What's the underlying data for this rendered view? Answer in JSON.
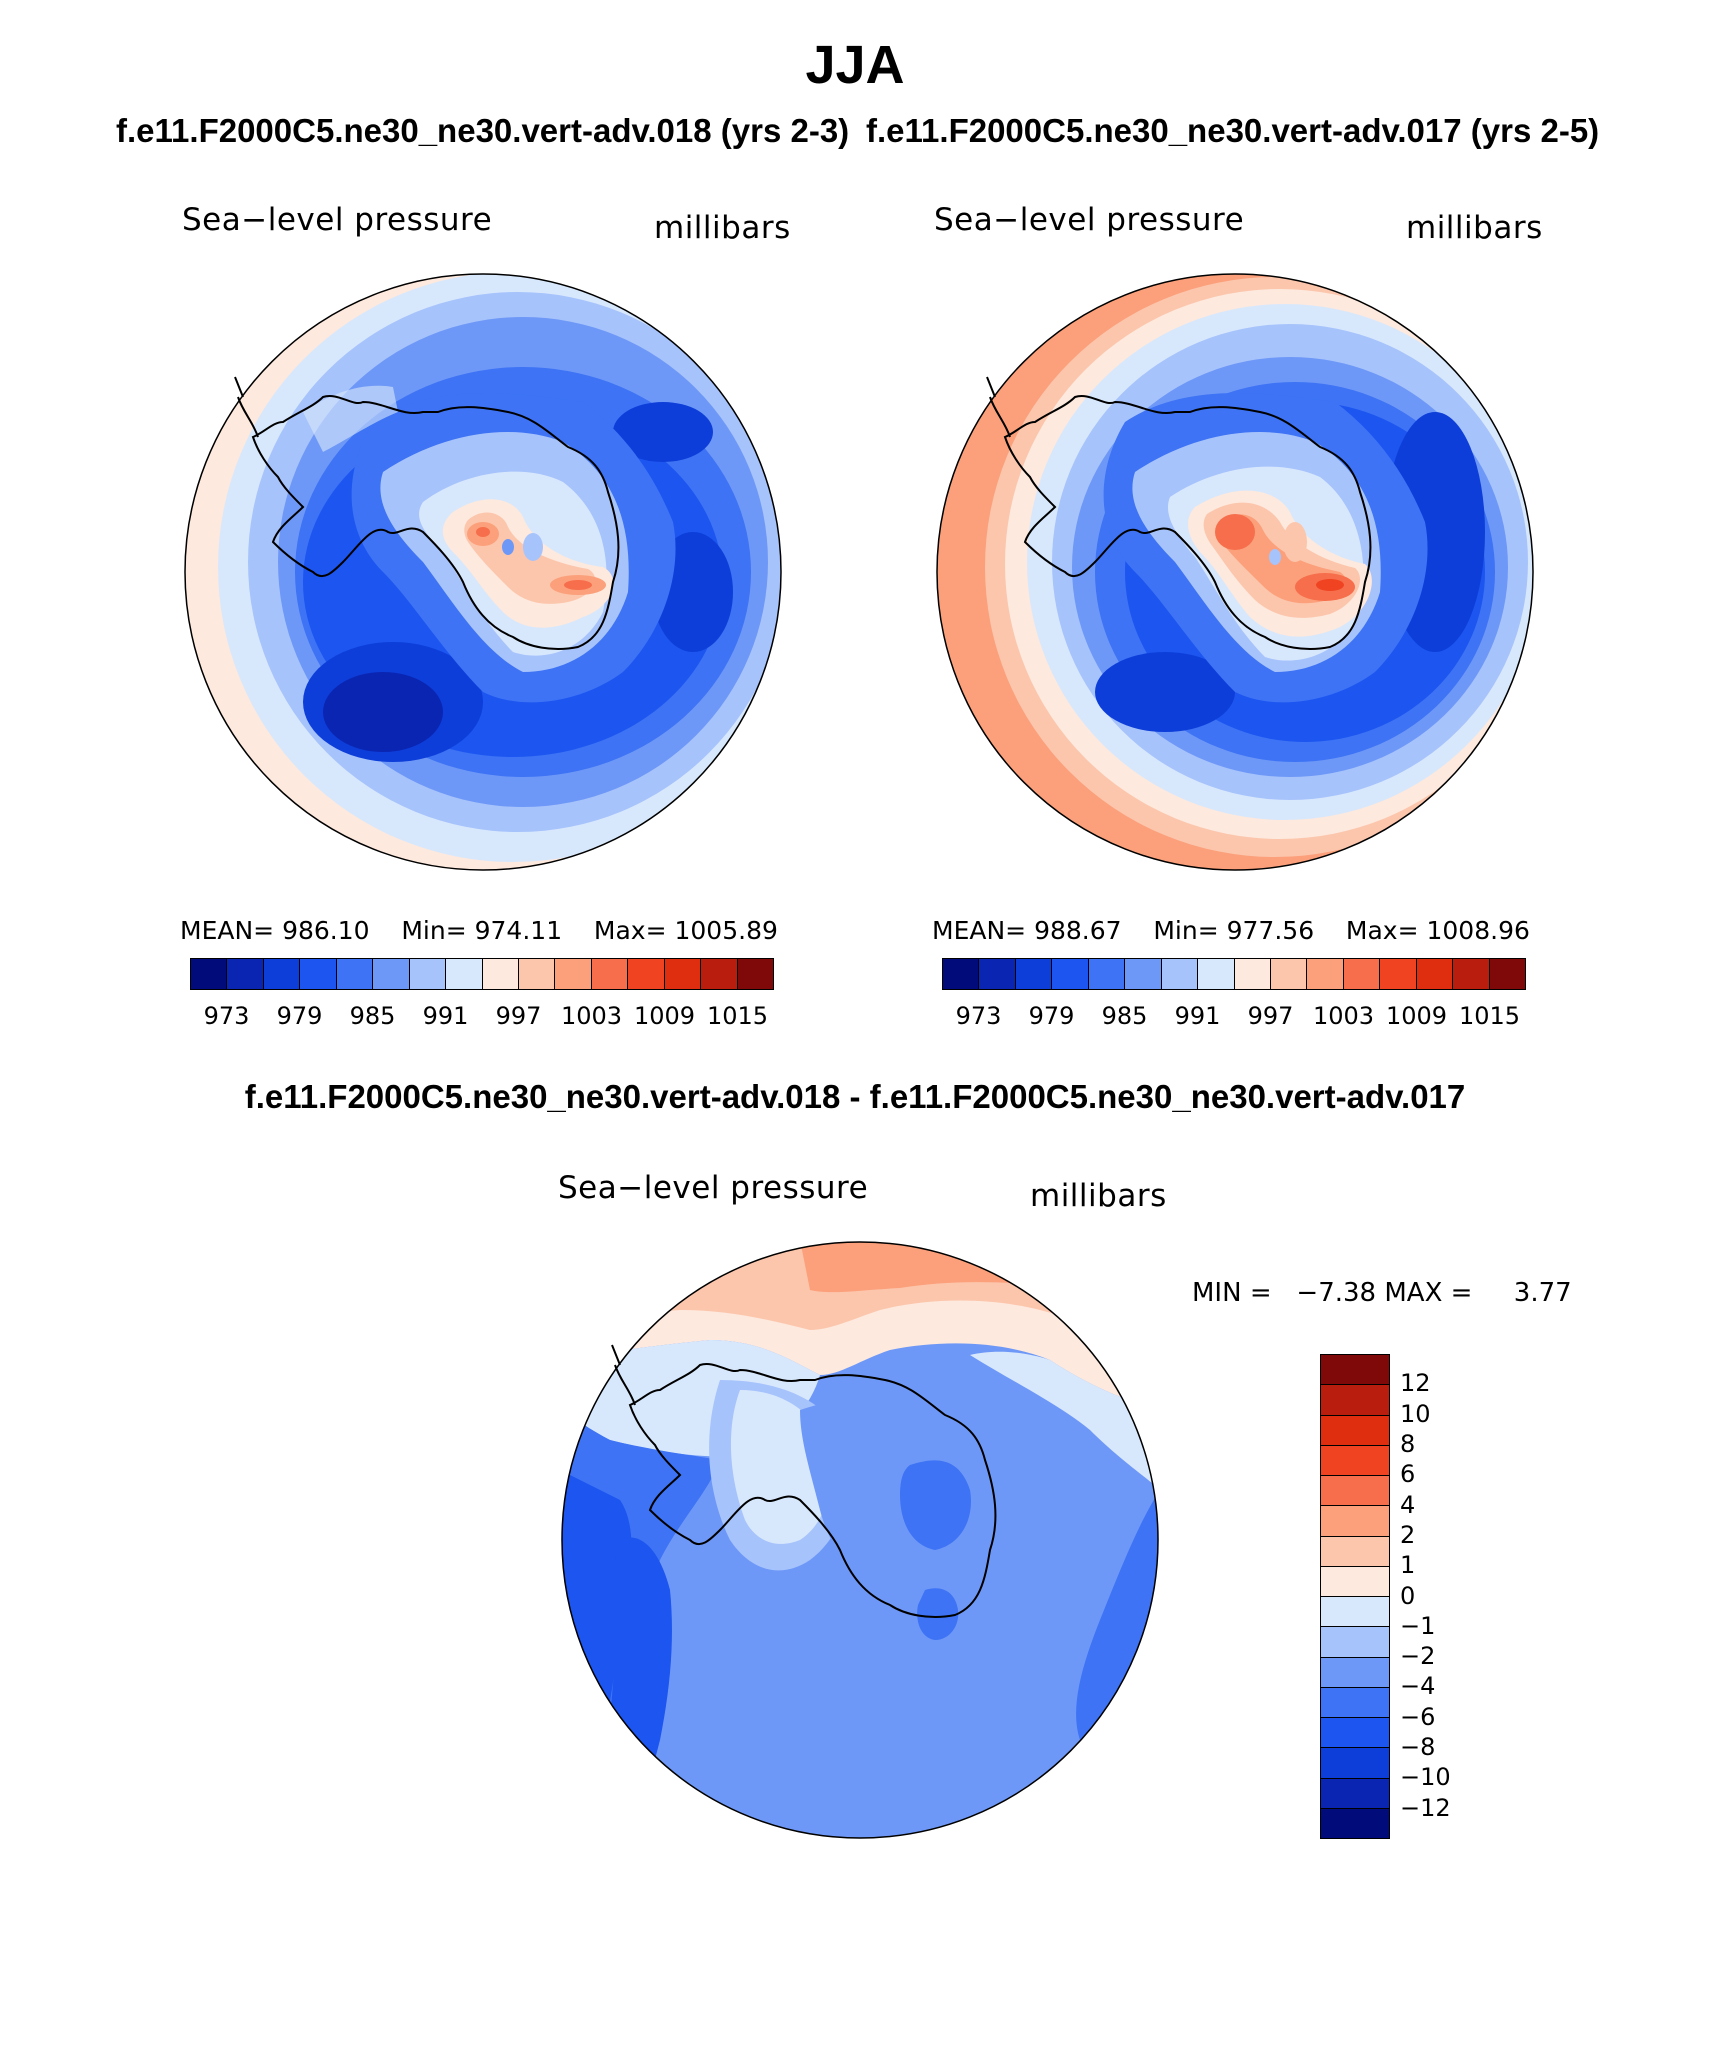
{
  "title": "JJA",
  "case_titles": {
    "left": "f.e11.F2000C5.ne30_ne30.vert-adv.018 (yrs 2-3)",
    "right": "f.e11.F2000C5.ne30_ne30.vert-adv.017 (yrs 2-5)"
  },
  "diff_title": "f.e11.F2000C5.ne30_ne30.vert-adv.018 - f.e11.F2000C5.ne30_ne30.vert-adv.017",
  "panels": [
    {
      "variable": "Sea−level pressure",
      "units": "millibars",
      "stats": {
        "mean_label": "MEAN=",
        "mean": "986.10",
        "min_label": "Min=",
        "min": "974.11",
        "max_label": "Max=",
        "max": "1005.89"
      }
    },
    {
      "variable": "Sea−level pressure",
      "units": "millibars",
      "stats": {
        "mean_label": "MEAN=",
        "mean": "988.67",
        "min_label": "Min=",
        "min": "977.56",
        "max_label": "Max=",
        "max": "1008.96"
      }
    }
  ],
  "abs_colorbar": {
    "colors": [
      "#020b7a",
      "#0a25b2",
      "#0d3ed9",
      "#1c55f0",
      "#3d73f4",
      "#6e98f7",
      "#a7c3fb",
      "#d8e8fc",
      "#fde9dd",
      "#fcc6ad",
      "#fba07b",
      "#f66e4b",
      "#ef4321",
      "#df2d10",
      "#b81d0d",
      "#7f0808"
    ],
    "tick_labels": [
      "973",
      "979",
      "985",
      "991",
      "997",
      "1003",
      "1009",
      "1015"
    ]
  },
  "diff_panel": {
    "variable": "Sea−level pressure",
    "units": "millibars",
    "min_label": "MIN =",
    "min": "−7.38",
    "max_label": "MAX =",
    "max": "3.77"
  },
  "diff_colorbar": {
    "colors": [
      "#7f0808",
      "#b81d0d",
      "#df2d10",
      "#ef4321",
      "#f66e4b",
      "#fba07b",
      "#fcc6ad",
      "#fde9dd",
      "#d8e8fc",
      "#a7c3fb",
      "#6e98f7",
      "#3d73f4",
      "#1c55f0",
      "#0d3ed9",
      "#0a25b2",
      "#020b7a"
    ],
    "tick_labels": [
      "12",
      "10",
      "8",
      "6",
      "4",
      "2",
      "1",
      "0",
      "−1",
      "−2",
      "−4",
      "−6",
      "−8",
      "−10",
      "−12"
    ]
  }
}
